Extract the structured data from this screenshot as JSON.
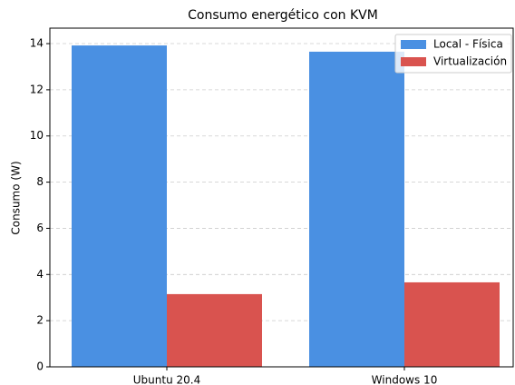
{
  "chart_data": {
    "type": "bar",
    "title": "Consumo energético con KVM",
    "ylabel": "Consumo (W)",
    "categories": [
      "Ubuntu 20.4",
      "Windows 10"
    ],
    "series": [
      {
        "name": "Local - Física",
        "color": "#4a90e2",
        "values": [
          13.92,
          13.65
        ]
      },
      {
        "name": "Virtualización",
        "color": "#d9534f",
        "values": [
          3.15,
          3.66
        ]
      }
    ],
    "ylim": [
      0,
      14.67
    ],
    "yticks": [
      0,
      2,
      4,
      6,
      8,
      10,
      12,
      14
    ],
    "grid": true,
    "legend": "upper right"
  }
}
